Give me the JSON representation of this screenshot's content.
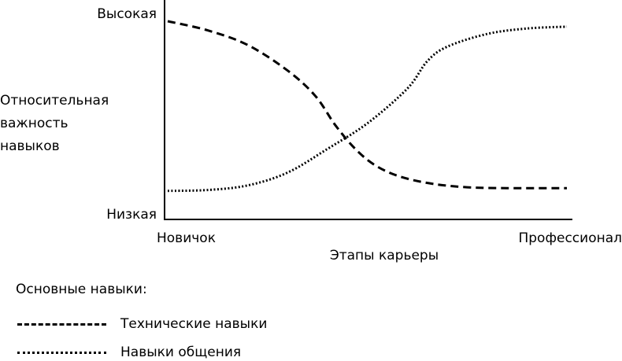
{
  "chart_data": {
    "type": "line",
    "ylabel_lines": [
      "Относительная",
      "важность",
      "навыков"
    ],
    "xlabel": "Этапы карьеры",
    "x_ticks": [
      "Новичок",
      "Профессионал"
    ],
    "y_ticks": [
      "Высокая",
      "Низкая"
    ],
    "xlim": [
      0,
      100
    ],
    "ylim": [
      0,
      100
    ],
    "grid": false,
    "legend_placement": "bottom-left",
    "series": [
      {
        "name": "Технические навыки",
        "style": "dashed",
        "color": "#000000",
        "x": [
          0,
          10,
          20,
          30,
          37,
          42,
          47,
          52,
          58,
          66,
          75,
          85,
          100
        ],
        "y": [
          97,
          92,
          84,
          70,
          56,
          40,
          27,
          18,
          12,
          8,
          6,
          5.5,
          5.5
        ]
      },
      {
        "name": "Навыки общения",
        "style": "dotted",
        "color": "#000000",
        "x": [
          0,
          10,
          20,
          30,
          40,
          50,
          60,
          65,
          70,
          80,
          90,
          100
        ],
        "y": [
          4,
          4.5,
          7,
          14,
          27,
          41,
          60,
          75,
          83,
          90,
          93,
          94
        ]
      }
    ]
  },
  "legend": {
    "title": "Основные навыки:",
    "items": [
      "Технические навыки",
      "Навыки общения"
    ]
  }
}
